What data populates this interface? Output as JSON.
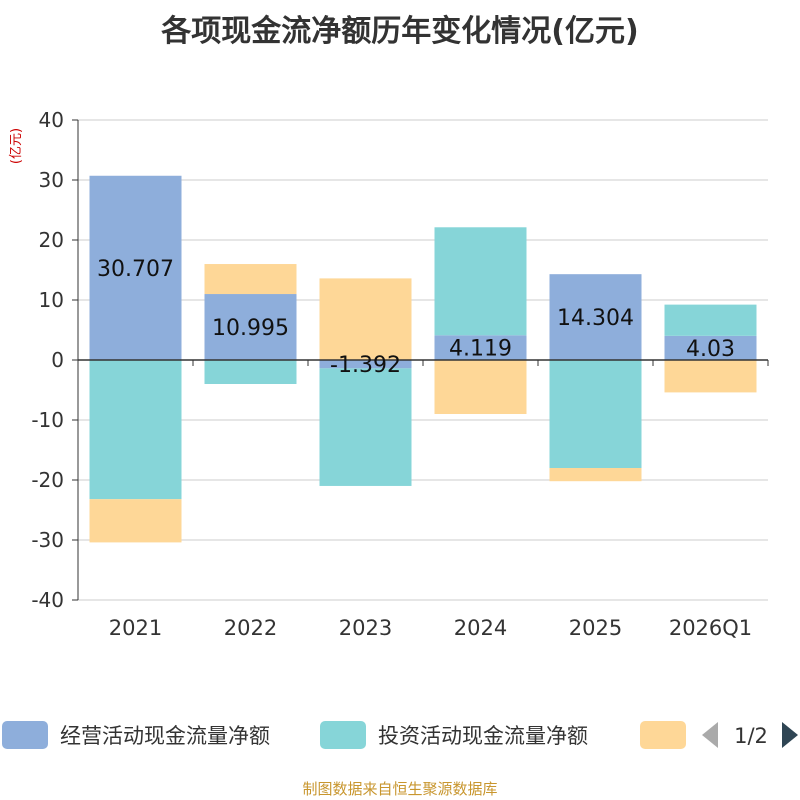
{
  "title": "各项现金流净额历年变化情况(亿元)",
  "source": "制图数据来自恒生聚源数据库",
  "colors": {
    "operating": "#8eaedb",
    "investing": "#86d5d8",
    "financing": "#fed797",
    "axis": "#333333",
    "grid": "#cccccc",
    "unit": "#cc0000",
    "pager_active": "#2f4554",
    "pager_inactive": "#aaaaaa"
  },
  "legend": {
    "page": "1/2",
    "prev_icon": "triangle-left-icon",
    "next_icon": "triangle-right-icon"
  },
  "chart_data": {
    "type": "bar",
    "stacked": true,
    "title": "各项现金流净额历年变化情况(亿元)",
    "ylabel": "(亿元)",
    "xlabel": "",
    "ylim": [
      -40,
      40
    ],
    "yticks": [
      40,
      30,
      20,
      10,
      0,
      -10,
      -20,
      -30,
      -40
    ],
    "grid": true,
    "legend_position": "bottom",
    "categories": [
      "2021",
      "2022",
      "2023",
      "2024",
      "2025",
      "2026Q1"
    ],
    "series": [
      {
        "name": "经营活动现金流量净额",
        "key": "operating",
        "values": [
          30.707,
          10.995,
          -1.392,
          4.119,
          14.304,
          4.03
        ],
        "labels": [
          "30.707",
          "10.995",
          "-1.392",
          "4.119",
          "14.304",
          "4.03"
        ]
      },
      {
        "name": "投资活动现金流量净额",
        "key": "investing",
        "values": [
          -23.2,
          -4.0,
          -19.6,
          18.0,
          -18.0,
          5.2
        ]
      },
      {
        "name": "",
        "key": "financing",
        "values": [
          -7.2,
          5.0,
          13.6,
          -9.0,
          -2.2,
          -5.4
        ]
      }
    ]
  }
}
